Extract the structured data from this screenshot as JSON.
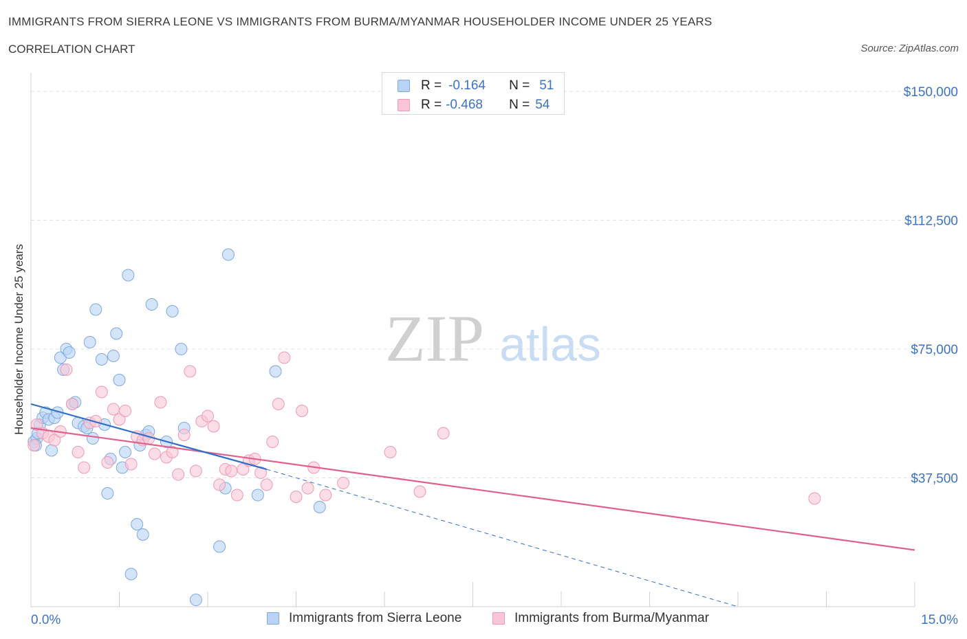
{
  "header": {
    "title": "IMMIGRANTS FROM SIERRA LEONE VS IMMIGRANTS FROM BURMA/MYANMAR HOUSEHOLDER INCOME UNDER 25 YEARS",
    "subtitle": "CORRELATION CHART",
    "source": "Source: ZipAtlas.com"
  },
  "watermark": {
    "zip": "ZIP",
    "atlas": "atlas"
  },
  "legend": {
    "rows": [
      {
        "r_label": "R =",
        "r_value": "-0.164",
        "n_label": "N =",
        "n_value": "51"
      },
      {
        "r_label": "R =",
        "r_value": "-0.468",
        "n_label": "N =",
        "n_value": "54"
      }
    ]
  },
  "colors": {
    "blue_fill": "#b9d3f5",
    "blue_stroke": "#7fa9e0",
    "blue_line": "#2f6fcb",
    "pink_fill": "#f8c6d6",
    "pink_stroke": "#ef9ab6",
    "pink_line": "#e0608c",
    "grid": "#e3e3e3",
    "tick_text": "#3b73c8"
  },
  "chart_data": {
    "type": "scatter",
    "title": "IMMIGRANTS FROM SIERRA LEONE VS IMMIGRANTS FROM BURMA/MYANMAR HOUSEHOLDER INCOME UNDER 25 YEARS",
    "xlabel": "",
    "ylabel": "Householder Income Under 25 years",
    "xlim": [
      0,
      15
    ],
    "ylim": [
      0,
      150000
    ],
    "y_ticks": [
      {
        "value": 37500,
        "label": "$37,500"
      },
      {
        "value": 75000,
        "label": "$75,000"
      },
      {
        "value": 112500,
        "label": "$112,500"
      },
      {
        "value": 150000,
        "label": "$150,000"
      }
    ],
    "x_tick_labels": {
      "min": "0.0%",
      "max": "15.0%"
    },
    "x_tick_values": [
      0,
      1.5,
      3,
      4.5,
      6,
      7.5,
      9,
      10.5,
      12,
      13.5,
      15
    ],
    "series": [
      {
        "name": "Immigrants from Sierra Leone",
        "color": "blue",
        "R": -0.164,
        "N": 51,
        "trend": {
          "x0": 0,
          "y0": 59000,
          "x1": 4.0,
          "y1": 40000,
          "dash_x1": 12.0,
          "dash_y1": 0
        },
        "points": [
          [
            0.05,
            48000
          ],
          [
            0.1,
            49000
          ],
          [
            0.15,
            53000
          ],
          [
            0.2,
            55000
          ],
          [
            0.25,
            56500
          ],
          [
            0.3,
            54500
          ],
          [
            0.35,
            45500
          ],
          [
            0.4,
            55000
          ],
          [
            0.45,
            56500
          ],
          [
            0.5,
            72500
          ],
          [
            0.55,
            69000
          ],
          [
            0.6,
            75000
          ],
          [
            0.65,
            74000
          ],
          [
            0.7,
            59000
          ],
          [
            0.75,
            59500
          ],
          [
            0.8,
            53500
          ],
          [
            0.9,
            52500
          ],
          [
            0.95,
            52000
          ],
          [
            1.0,
            77000
          ],
          [
            1.05,
            49000
          ],
          [
            1.1,
            86500
          ],
          [
            1.2,
            72000
          ],
          [
            1.25,
            53000
          ],
          [
            1.3,
            33000
          ],
          [
            1.35,
            43000
          ],
          [
            1.4,
            73000
          ],
          [
            1.45,
            79500
          ],
          [
            1.5,
            66000
          ],
          [
            1.55,
            40500
          ],
          [
            1.6,
            45000
          ],
          [
            1.65,
            96500
          ],
          [
            1.7,
            9500
          ],
          [
            1.8,
            24000
          ],
          [
            1.85,
            47000
          ],
          [
            1.9,
            21000
          ],
          [
            1.95,
            50000
          ],
          [
            2.0,
            51000
          ],
          [
            2.05,
            88000
          ],
          [
            2.3,
            48000
          ],
          [
            2.4,
            86000
          ],
          [
            2.55,
            75000
          ],
          [
            2.6,
            52000
          ],
          [
            2.8,
            2000
          ],
          [
            3.2,
            17500
          ],
          [
            3.3,
            34500
          ],
          [
            3.35,
            102500
          ],
          [
            3.85,
            32500
          ],
          [
            4.15,
            68500
          ],
          [
            4.9,
            29000
          ],
          [
            0.08,
            47000
          ],
          [
            0.12,
            50500
          ]
        ]
      },
      {
        "name": "Immigrants from Burma/Myanmar",
        "color": "pink",
        "R": -0.468,
        "N": 54,
        "trend": {
          "x0": 0,
          "y0": 52000,
          "x1": 15.0,
          "y1": 16500
        },
        "points": [
          [
            0.05,
            47000
          ],
          [
            0.1,
            53000
          ],
          [
            0.2,
            50500
          ],
          [
            0.3,
            49500
          ],
          [
            0.4,
            48500
          ],
          [
            0.5,
            51000
          ],
          [
            0.6,
            69000
          ],
          [
            0.7,
            59000
          ],
          [
            0.8,
            45000
          ],
          [
            0.9,
            40500
          ],
          [
            1.0,
            53500
          ],
          [
            1.1,
            54000
          ],
          [
            1.2,
            62500
          ],
          [
            1.3,
            42000
          ],
          [
            1.4,
            57500
          ],
          [
            1.5,
            54500
          ],
          [
            1.6,
            57000
          ],
          [
            1.7,
            41500
          ],
          [
            1.8,
            49500
          ],
          [
            1.9,
            48500
          ],
          [
            2.0,
            49000
          ],
          [
            2.1,
            44500
          ],
          [
            2.2,
            59500
          ],
          [
            2.3,
            43500
          ],
          [
            2.4,
            45000
          ],
          [
            2.5,
            38500
          ],
          [
            2.6,
            50000
          ],
          [
            2.7,
            68500
          ],
          [
            2.8,
            39500
          ],
          [
            2.9,
            54000
          ],
          [
            3.0,
            55500
          ],
          [
            3.1,
            52500
          ],
          [
            3.2,
            35500
          ],
          [
            3.3,
            40000
          ],
          [
            3.4,
            39500
          ],
          [
            3.5,
            32500
          ],
          [
            3.6,
            40000
          ],
          [
            3.7,
            42500
          ],
          [
            3.8,
            43000
          ],
          [
            3.9,
            39000
          ],
          [
            4.0,
            35500
          ],
          [
            4.1,
            48000
          ],
          [
            4.2,
            59000
          ],
          [
            4.3,
            72500
          ],
          [
            4.5,
            32000
          ],
          [
            4.6,
            57000
          ],
          [
            4.7,
            34500
          ],
          [
            4.8,
            40500
          ],
          [
            5.0,
            32500
          ],
          [
            5.3,
            36000
          ],
          [
            6.1,
            45000
          ],
          [
            6.6,
            33500
          ],
          [
            7.0,
            50500
          ],
          [
            13.3,
            31500
          ]
        ]
      }
    ]
  }
}
